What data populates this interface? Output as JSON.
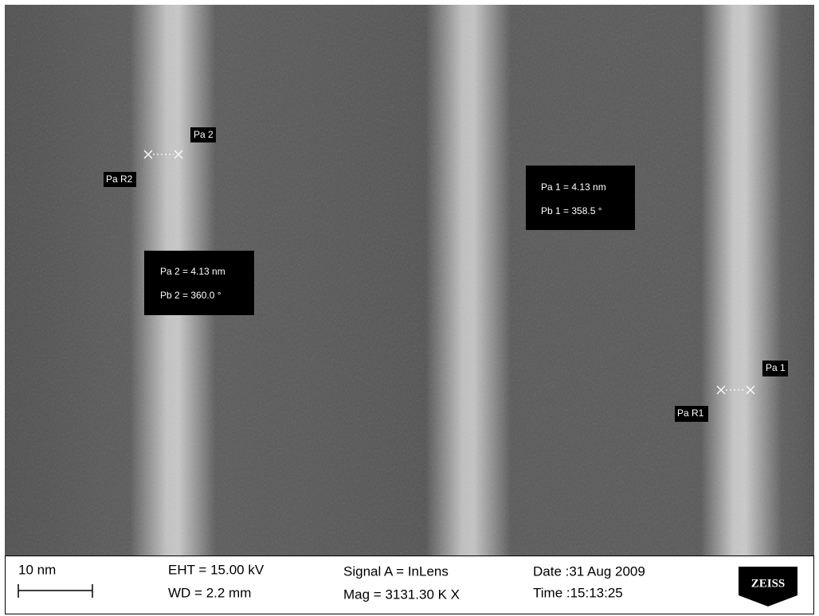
{
  "image": {
    "markers": {
      "pa2": "Pa 2",
      "par2": "Pa R2",
      "pa1": "Pa 1",
      "par1": "Pa R1"
    },
    "measurements": [
      {
        "line1": "Pa 2 = 4.13 nm",
        "line2": "Pb 2 = 360.0 °"
      },
      {
        "line1": "Pa 1 = 4.13 nm",
        "line2": "Pb 1 = 358.5 °"
      }
    ]
  },
  "footer": {
    "scale": "10 nm",
    "eht": "EHT = 15.00 kV",
    "wd": "WD =  2.2 mm",
    "signal": "Signal A = InLens",
    "mag": "Mag = 3131.30 K X",
    "date": "Date :31 Aug 2009",
    "time": "Time :15:13:25",
    "logo": "ZEISS"
  }
}
